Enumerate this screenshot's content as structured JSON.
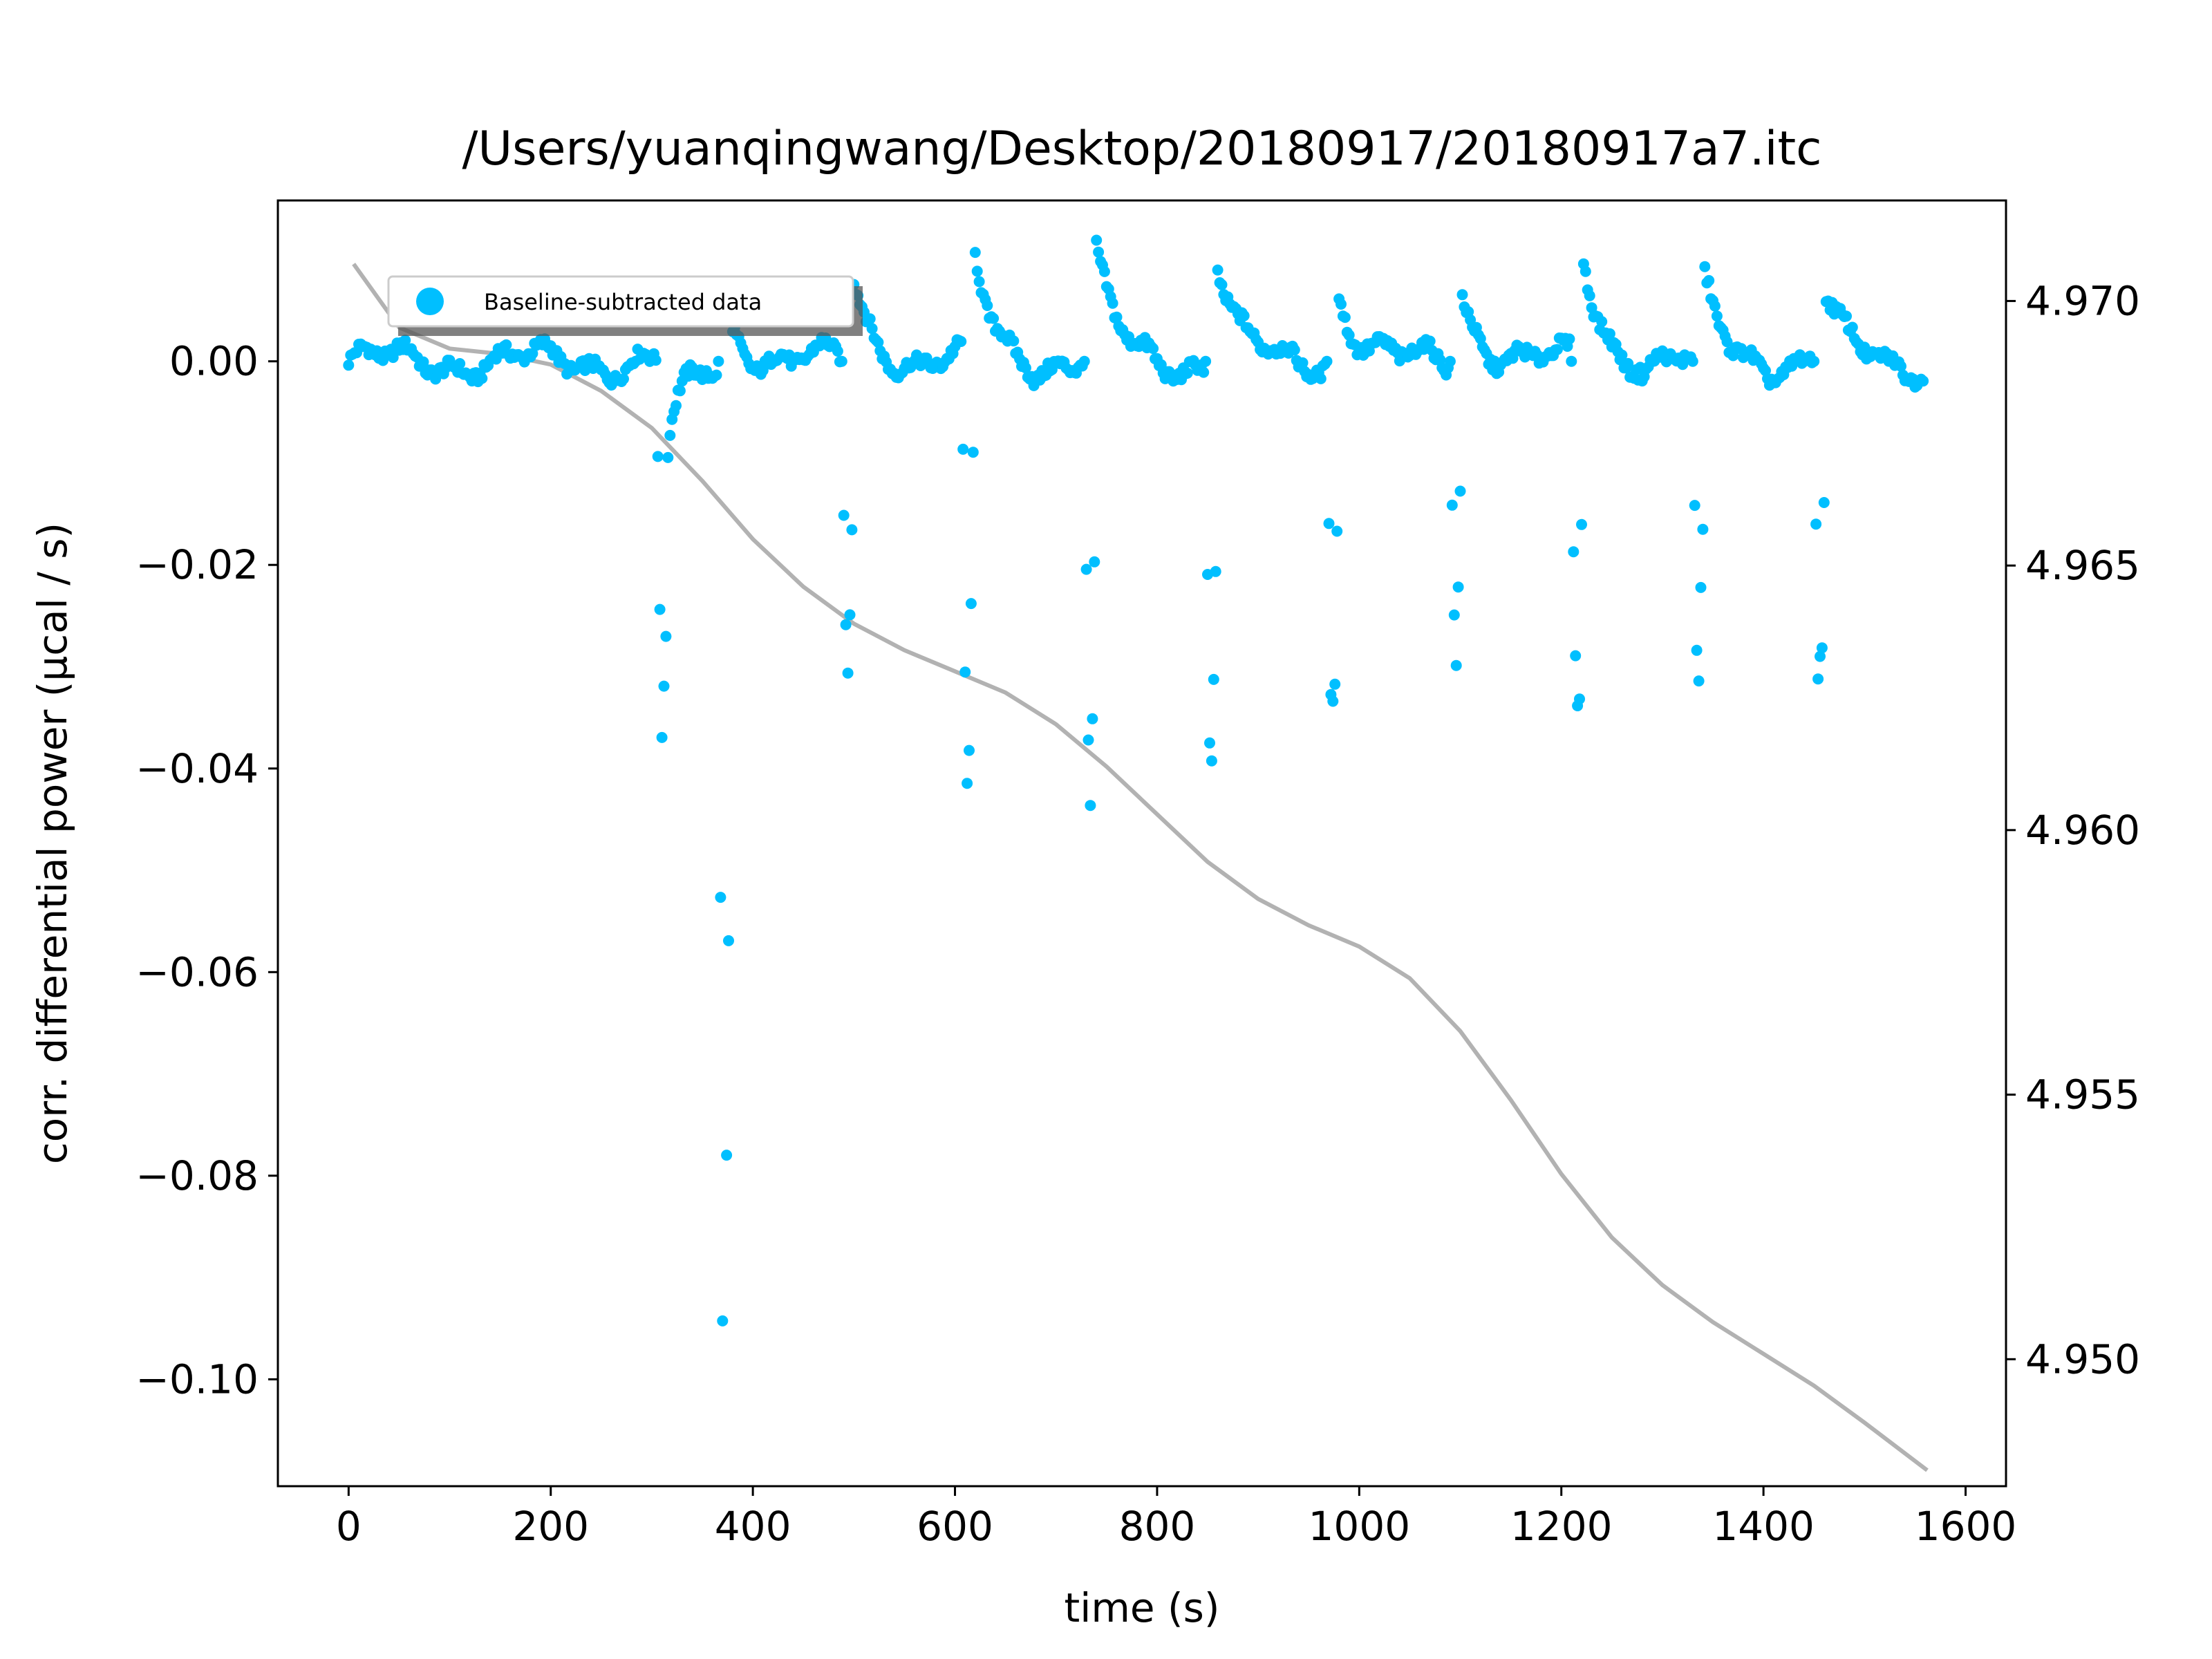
{
  "chart_data": {
    "type": "scatter",
    "title": "/Users/yuanqingwang/Desktop/20180917/20180917a7.itc",
    "xlabel": "time (s)",
    "ylabel": "corr. differential power (μcal / s)",
    "xlim": [
      -70,
      1640
    ],
    "ylim": [
      -0.1105,
      0.0158
    ],
    "y2lim": [
      4.9476,
      4.9719
    ],
    "grid": false,
    "legend": {
      "position": "top-left",
      "label": "Baseline-subtracted data"
    },
    "x_ticks": [
      0,
      200,
      400,
      600,
      800,
      1000,
      1200,
      1400,
      1600
    ],
    "x_tick_labels": [
      "0",
      "200",
      "400",
      "600",
      "800",
      "1000",
      "1200",
      "1400",
      "1600"
    ],
    "y_ticks": [
      0.0,
      -0.02,
      -0.04,
      -0.06,
      -0.08,
      -0.1
    ],
    "y_tick_labels": [
      "0.00",
      "−0.02",
      "−0.04",
      "−0.06",
      "−0.08",
      "−0.10"
    ],
    "y2_ticks": [
      4.97,
      4.965,
      4.96,
      4.955,
      4.95
    ],
    "y2_tick_labels": [
      "4.970",
      "4.965",
      "4.960",
      "4.955",
      "4.950"
    ],
    "series": [
      {
        "name": "Baseline-subtracted data",
        "kind": "scatter",
        "axis": "left",
        "color": "#00bfff",
        "x_start": 0,
        "x_step": 2,
        "n": 780,
        "baseline_ripple": 0.0012,
        "injections": [
          {
            "t": 305,
            "drop_min": -0.038,
            "peak_after": -0.008,
            "recovery": 0.0
          },
          {
            "t": 366,
            "drop_min": -0.105,
            "peak_after": 0.004,
            "recovery": 0.0
          },
          {
            "t": 488,
            "drop_min": -0.033,
            "peak_after": 0.008,
            "recovery": 0.0
          },
          {
            "t": 607,
            "drop_min": -0.038,
            "peak_after": 0.01,
            "recovery": 0.0
          },
          {
            "t": 728,
            "drop_min": -0.039,
            "peak_after": 0.01,
            "recovery": 0.0
          },
          {
            "t": 848,
            "drop_min": -0.038,
            "peak_after": 0.01,
            "recovery": 0.0
          },
          {
            "t": 968,
            "drop_min": -0.036,
            "peak_after": 0.007,
            "recovery": 0.0
          },
          {
            "t": 1090,
            "drop_min": -0.028,
            "peak_after": 0.007,
            "recovery": 0.0
          },
          {
            "t": 1210,
            "drop_min": -0.035,
            "peak_after": 0.01,
            "recovery": 0.0
          },
          {
            "t": 1330,
            "drop_min": -0.029,
            "peak_after": 0.007,
            "recovery": 0.0
          },
          {
            "t": 1450,
            "drop_min": -0.032,
            "peak_after": 0.006,
            "recovery": 0.0
          }
        ]
      },
      {
        "kind": "line",
        "axis": "right",
        "color": "#b2b2b2",
        "x": [
          5,
          50,
          100,
          150,
          200,
          250,
          300,
          350,
          400,
          450,
          500,
          550,
          600,
          650,
          700,
          750,
          800,
          850,
          900,
          950,
          1000,
          1050,
          1100,
          1150,
          1200,
          1250,
          1300,
          1350,
          1400,
          1450,
          1500,
          1562
        ],
        "y": [
          4.9707,
          4.9695,
          4.9691,
          4.969,
          4.9688,
          4.9683,
          4.9676,
          4.9666,
          4.9655,
          4.9646,
          4.9639,
          4.9634,
          4.963,
          4.9626,
          4.962,
          4.9612,
          4.9603,
          4.9594,
          4.9587,
          4.9582,
          4.9578,
          4.9572,
          4.9562,
          4.9549,
          4.9535,
          4.9523,
          4.9514,
          4.9507,
          4.9501,
          4.9495,
          4.9488,
          4.9479
        ]
      }
    ]
  }
}
